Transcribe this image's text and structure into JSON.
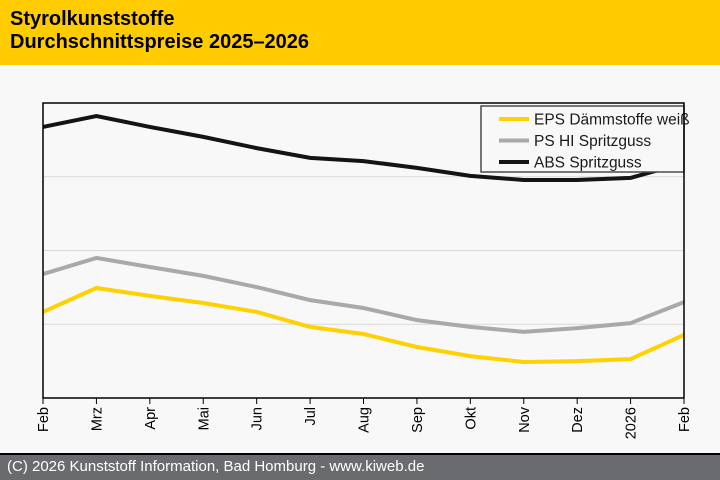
{
  "header": {
    "title_line1": "Styrolkunststoffe",
    "title_line2": "Durchschnittspreise 2025–2026",
    "background": "#FFCC00",
    "text_color": "#000000"
  },
  "chart_data": {
    "type": "line",
    "title": "Styrolkunststoffe Durchschnittspreise 2025–2026",
    "xlabel": "",
    "ylabel": "",
    "x_categories": [
      "Feb",
      "Mrz",
      "Apr",
      "Mai",
      "Jun",
      "Jul",
      "Aug",
      "Sep",
      "Okt",
      "Nov",
      "Dez",
      "2026",
      "Feb"
    ],
    "y_axis": {
      "tick_labels_visible": false,
      "scale": "relative price index (0 = plot bottom, 100 = plot top)",
      "ylim": [
        0,
        100
      ],
      "gridlines_at": [
        25,
        50,
        75
      ],
      "grid": true
    },
    "series": [
      {
        "name": "EPS Dämmstoffe weiß",
        "color": "#FFD100",
        "values": [
          29.2,
          37.3,
          34.6,
          32.2,
          29.2,
          24.1,
          21.7,
          17.3,
          14.2,
          12.2,
          12.5,
          13.2,
          21.4
        ]
      },
      {
        "name": "PS HI Spritzguss",
        "color": "#A9A9A9",
        "values": [
          42.0,
          47.5,
          44.4,
          41.4,
          37.6,
          33.2,
          30.5,
          26.4,
          24.1,
          22.4,
          23.7,
          25.4,
          32.5
        ]
      },
      {
        "name": "ABS Spritzguss",
        "color": "#141414",
        "values": [
          91.9,
          95.6,
          91.9,
          88.5,
          84.7,
          81.4,
          80.3,
          78.0,
          75.3,
          73.9,
          73.9,
          74.6,
          79.7
        ]
      }
    ],
    "legend": {
      "position": "top-right",
      "border": true,
      "background": "#F8F8F8"
    }
  },
  "footer": {
    "text": "(C) 2026 Kunststoff Information, Bad Homburg - www.kiweb.de",
    "background": "#696B6E",
    "text_color": "#FFFFFF"
  }
}
